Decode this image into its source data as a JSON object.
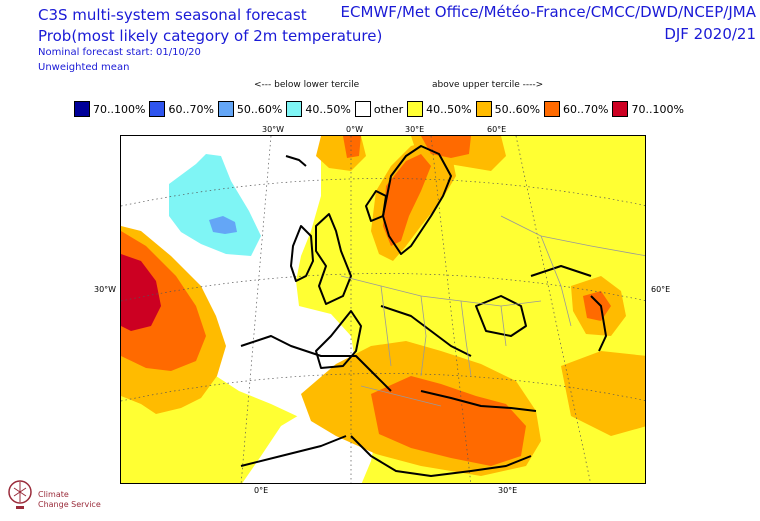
{
  "header": {
    "title": "C3S multi-system seasonal forecast",
    "subtitle": "Prob(most likely category of 2m temperature)",
    "start": "Nominal forecast start: 01/10/20",
    "mean": "Unweighted mean",
    "centres": "ECMWF/Met Office/Météo-France/CMCC/DWD/NCEP/JMA",
    "season": "DJF 2020/21"
  },
  "tercile": {
    "below": "<--- below lower tercile",
    "above": "above upper tercile ---->"
  },
  "legend": [
    {
      "label": "70..100%",
      "color": "#000099"
    },
    {
      "label": "60..70%",
      "color": "#2f55ee"
    },
    {
      "label": "50..60%",
      "color": "#64a6f6"
    },
    {
      "label": "40..50%",
      "color": "#7ff5f5"
    },
    {
      "label": "other",
      "color": "#ffffff"
    },
    {
      "label": "40..50%",
      "color": "#ffff33"
    },
    {
      "label": "50..60%",
      "color": "#ffbb00"
    },
    {
      "label": "60..70%",
      "color": "#ff6a00"
    },
    {
      "label": "70..100%",
      "color": "#cc0022"
    }
  ],
  "grid_labels": {
    "top": [
      "30°W",
      "0°W",
      "30°E",
      "60°E"
    ],
    "bottom": [
      "0°E",
      "30°E"
    ],
    "left": "30°W",
    "right": "60°E"
  },
  "logo": {
    "name": "Climate Change Service",
    "line1": "Climate",
    "line2": "Change Service"
  }
}
